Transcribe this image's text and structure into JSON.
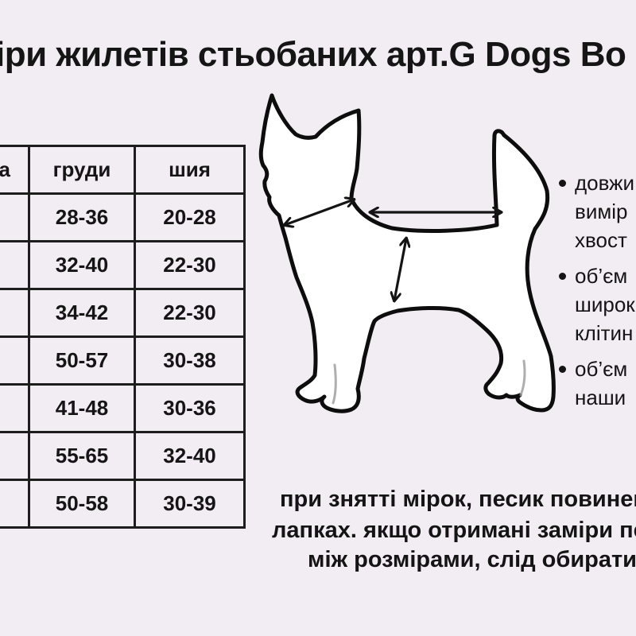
{
  "title": "іри жилетів стьобаних арт.G Dogs Bo",
  "table": {
    "headers": [
      "а",
      "груди",
      "шия"
    ],
    "rows": [
      [
        "",
        "28-36",
        "20-28"
      ],
      [
        "",
        "32-40",
        "22-30"
      ],
      [
        "",
        "34-42",
        "22-30"
      ],
      [
        "",
        "50-57",
        "30-38"
      ],
      [
        "",
        "41-48",
        "30-36"
      ],
      [
        "",
        "55-65",
        "32-40"
      ],
      [
        "",
        "50-58",
        "30-39"
      ]
    ]
  },
  "bullets": [
    {
      "lines": [
        "довжи",
        "вимір",
        "хвост"
      ]
    },
    {
      "lines": [
        "об’єм",
        "широк",
        "клітин"
      ]
    },
    {
      "lines": [
        "об’єм",
        "наши"
      ]
    }
  ],
  "note_lines": [
    "при знятті мірок, песик повинен с",
    "лапках. якщо отримані заміри пе",
    "між розмірами, слід обирати б"
  ],
  "diagram": {
    "subject": "chihuahua-silhouette",
    "arrows": [
      "back-length-arrow",
      "neck-girth-arrow",
      "chest-girth-arrow"
    ]
  },
  "colors": {
    "background": "#f2ecf3",
    "line": "#1d1d1d",
    "text": "#151515",
    "dog_fill": "#ffffff"
  }
}
